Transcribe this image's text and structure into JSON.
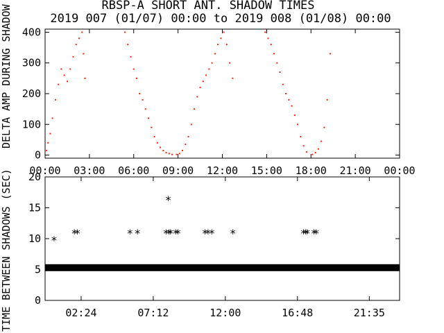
{
  "title_line1": "RBSP-A SHORT ANT. SHADOW TIMES",
  "title_line2": "2019 007 (01/07) 00:00 to 2019 008 (01/08) 00:00",
  "chart_data": [
    {
      "type": "scatter",
      "ylabel": "DELTA AMP DURING SHADOW",
      "xlim": [
        0,
        24
      ],
      "ylim": [
        -10,
        410
      ],
      "yticks": [
        0,
        100,
        200,
        300,
        400
      ],
      "xtick_labels": [
        "00:00",
        "03:00",
        "06:00",
        "09:00",
        "12:00",
        "15:00",
        "18:00",
        "21:00",
        "00:00"
      ],
      "color": "#ff2200",
      "series": [
        {
          "x": [
            0.1,
            0.2,
            0.35,
            0.5,
            0.7,
            0.9,
            1.1,
            1.3,
            1.5,
            1.7,
            1.9,
            2.1,
            2.3,
            2.5,
            2.6,
            2.7,
            5.4,
            5.6,
            5.8,
            6.0,
            6.2,
            6.4,
            6.6,
            6.8,
            7.0,
            7.2,
            7.4,
            7.6,
            7.8,
            8.0,
            8.2,
            8.4,
            8.6,
            8.9,
            9.1,
            9.3,
            9.5,
            9.7,
            9.9,
            10.1,
            10.3,
            10.5,
            10.7,
            10.9,
            11.1,
            11.3,
            11.5,
            11.7,
            11.9,
            12.1,
            12.3,
            12.5,
            12.7,
            14.9,
            15.1,
            15.3,
            15.5,
            15.7,
            15.9,
            16.1,
            16.3,
            16.5,
            16.7,
            16.9,
            17.1,
            17.3,
            17.5,
            17.7,
            18.1,
            18.3,
            18.5,
            18.7,
            18.9,
            19.1,
            19.3
          ],
          "y": [
            15,
            40,
            70,
            120,
            180,
            230,
            280,
            260,
            240,
            280,
            320,
            360,
            380,
            400,
            330,
            250,
            400,
            360,
            320,
            280,
            250,
            200,
            180,
            150,
            120,
            90,
            60,
            40,
            25,
            15,
            8,
            5,
            2,
            2,
            5,
            15,
            35,
            60,
            100,
            150,
            190,
            220,
            240,
            260,
            280,
            300,
            330,
            360,
            380,
            400,
            360,
            300,
            250,
            400,
            380,
            360,
            330,
            300,
            270,
            230,
            200,
            180,
            160,
            130,
            100,
            60,
            30,
            10,
            2,
            8,
            20,
            45,
            90,
            180,
            330
          ]
        }
      ]
    },
    {
      "type": "scatter",
      "ylabel": "TIME BETWEEN SHADOWS (SEC)",
      "xlim": [
        0,
        23.6
      ],
      "ylim": [
        0,
        20
      ],
      "yticks": [
        0,
        5,
        10,
        15,
        20
      ],
      "xtick_labels": [
        "02:24",
        "07:12",
        "12:00",
        "16:48",
        "21:35"
      ],
      "xtick_values": [
        2.4,
        7.2,
        12.0,
        16.8,
        21.583
      ],
      "baseline_value": 5.3,
      "series": [
        {
          "x": [
            0.6,
            1.95,
            2.15,
            5.65,
            6.15,
            8.05,
            8.2,
            8.25,
            8.35,
            8.7,
            8.85,
            10.65,
            10.85,
            11.1,
            12.5,
            17.2,
            17.35,
            17.45,
            17.9,
            18.05
          ],
          "y": [
            9.8,
            10.9,
            10.9,
            10.9,
            10.9,
            10.9,
            16.3,
            10.9,
            10.9,
            10.9,
            10.9,
            10.9,
            10.9,
            10.9,
            10.9,
            10.9,
            10.9,
            10.9,
            10.9,
            10.9
          ]
        }
      ]
    }
  ]
}
